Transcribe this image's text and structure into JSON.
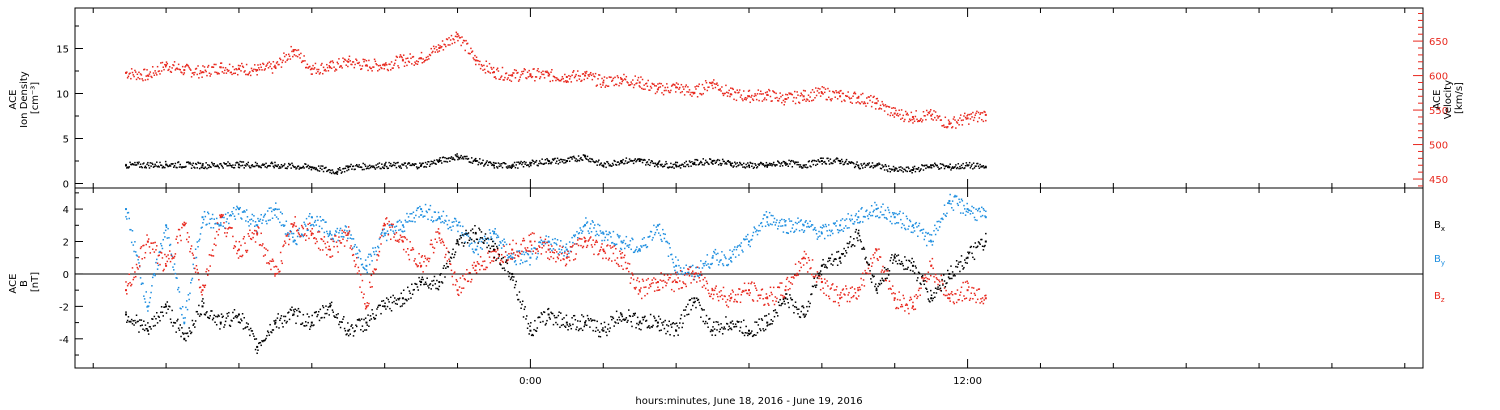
{
  "chart_data": [
    {
      "type": "scatter",
      "panel": "plasma",
      "ylabel_lines": [
        "ACE",
        "Ion Density",
        "[cm⁻³]"
      ],
      "y2label_lines": [
        "ACE",
        "Velocity",
        "[km/s]"
      ],
      "ylim": [
        -0.5,
        19.5
      ],
      "y_ticks": [
        0,
        5,
        10,
        15
      ],
      "y2lim": [
        437,
        698
      ],
      "y2_ticks": [
        450,
        500,
        550,
        600,
        650
      ],
      "y2_color": "#e8281e",
      "grid": false,
      "series": [
        {
          "key": "density",
          "color": "#000000",
          "axis": "left",
          "x": [
            -11.1,
            -10.0,
            -9.0,
            -8.0,
            -7.0,
            -6.0,
            -5.3,
            -5.0,
            -4.0,
            -3.0,
            -2.5,
            -2.0,
            -1.5,
            -1.0,
            -0.5,
            0.0,
            0.5,
            1.0,
            1.5,
            2.0,
            2.5,
            3.0,
            3.5,
            4.0,
            4.5,
            5.0,
            5.5,
            6.0,
            6.5,
            7.0,
            7.5,
            8.0,
            8.5,
            9.0,
            9.5,
            10.0,
            10.5,
            11.0,
            11.5,
            12.0,
            12.5
          ],
          "y": [
            2.0,
            2.1,
            2.0,
            2.1,
            2.0,
            1.8,
            1.3,
            1.8,
            2.0,
            2.0,
            2.5,
            3.0,
            2.5,
            2.0,
            2.0,
            2.2,
            2.5,
            2.5,
            3.0,
            2.0,
            2.5,
            2.5,
            2.2,
            2.0,
            2.3,
            2.5,
            2.2,
            2.0,
            2.0,
            2.3,
            2.0,
            2.5,
            2.5,
            2.0,
            2.0,
            1.5,
            1.5,
            2.0,
            1.8,
            2.0,
            1.8
          ]
        },
        {
          "key": "velocity",
          "color": "#e8281e",
          "axis": "right",
          "x": [
            -11.1,
            -10.5,
            -10.0,
            -9.5,
            -9.0,
            -8.5,
            -8.0,
            -7.5,
            -7.0,
            -6.5,
            -6.0,
            -5.5,
            -5.0,
            -4.5,
            -4.0,
            -3.5,
            -3.0,
            -2.5,
            -2.0,
            -1.5,
            -1.0,
            -0.5,
            0.0,
            0.5,
            1.0,
            1.5,
            2.0,
            2.5,
            3.0,
            3.5,
            4.0,
            4.5,
            5.0,
            5.5,
            6.0,
            6.5,
            7.0,
            7.5,
            8.0,
            8.5,
            9.0,
            9.5,
            10.0,
            10.5,
            11.0,
            11.5,
            12.0,
            12.5
          ],
          "y": [
            604,
            600,
            615,
            608,
            605,
            612,
            610,
            608,
            612,
            637,
            610,
            612,
            620,
            615,
            615,
            622,
            625,
            640,
            660,
            622,
            605,
            600,
            602,
            600,
            598,
            600,
            590,
            595,
            590,
            580,
            583,
            575,
            590,
            573,
            570,
            572,
            566,
            570,
            575,
            570,
            568,
            560,
            545,
            540,
            542,
            530,
            538,
            543
          ]
        }
      ]
    },
    {
      "type": "scatter",
      "panel": "magnetic_field",
      "ylabel_lines": [
        "ACE",
        "B",
        "[nT]"
      ],
      "ylim": [
        -5.8,
        5.3
      ],
      "y_ticks": [
        -4,
        -2,
        0,
        2,
        4
      ],
      "zero_line": true,
      "grid": false,
      "legend_position": "right",
      "series": [
        {
          "key": "bx",
          "name": "Bx",
          "color": "#000000",
          "x": [
            -11.1,
            -10.5,
            -10.0,
            -9.5,
            -9.0,
            -8.5,
            -8.0,
            -7.5,
            -7.0,
            -6.5,
            -6.0,
            -5.5,
            -5.0,
            -4.5,
            -4.0,
            -3.5,
            -3.0,
            -2.5,
            -2.0,
            -1.5,
            -1.0,
            -0.5,
            0.0,
            0.5,
            1.0,
            1.5,
            2.0,
            2.5,
            3.0,
            3.5,
            4.0,
            4.5,
            5.0,
            5.5,
            6.0,
            6.5,
            7.0,
            7.5,
            8.0,
            8.5,
            9.0,
            9.5,
            10.0,
            10.5,
            11.0,
            11.5,
            12.0,
            12.5
          ],
          "y": [
            -2.5,
            -3.5,
            -2.0,
            -4.0,
            -2.0,
            -3.0,
            -2.5,
            -4.5,
            -3.0,
            -2.5,
            -3.0,
            -2.0,
            -3.5,
            -3.0,
            -2.0,
            -1.5,
            -0.5,
            -0.5,
            2.0,
            2.5,
            1.5,
            0.0,
            -3.5,
            -2.5,
            -3.0,
            -3.0,
            -3.5,
            -2.5,
            -3.0,
            -3.0,
            -3.5,
            -1.5,
            -3.5,
            -3.0,
            -3.5,
            -3.0,
            -1.5,
            -2.5,
            0.5,
            1.0,
            2.5,
            -1.0,
            1.0,
            0.5,
            -1.5,
            0.0,
            1.0,
            2.0
          ]
        },
        {
          "key": "by",
          "name": "By",
          "color": "#1f8fe0",
          "x": [
            -11.1,
            -10.5,
            -10.0,
            -9.5,
            -9.0,
            -8.5,
            -8.0,
            -7.5,
            -7.0,
            -6.5,
            -6.0,
            -5.5,
            -5.0,
            -4.5,
            -4.0,
            -3.5,
            -3.0,
            -2.5,
            -2.0,
            -1.5,
            -1.0,
            -0.5,
            0.0,
            0.5,
            1.0,
            1.5,
            2.0,
            2.5,
            3.0,
            3.5,
            4.0,
            4.5,
            5.0,
            5.5,
            6.0,
            6.5,
            7.0,
            7.5,
            8.0,
            8.5,
            9.0,
            9.5,
            10.0,
            10.5,
            11.0,
            11.5,
            12.0,
            12.5
          ],
          "y": [
            4.0,
            -2.0,
            3.0,
            -3.0,
            3.5,
            3.0,
            4.0,
            3.0,
            4.0,
            2.0,
            3.5,
            2.5,
            2.5,
            0.5,
            2.5,
            3.0,
            4.0,
            3.5,
            3.0,
            1.5,
            2.5,
            1.0,
            1.0,
            2.0,
            1.5,
            3.0,
            2.5,
            2.0,
            1.5,
            3.0,
            0.5,
            0.0,
            1.0,
            1.0,
            2.0,
            3.5,
            3.0,
            3.0,
            2.5,
            3.0,
            3.5,
            4.0,
            3.5,
            3.0,
            2.0,
            4.5,
            4.0,
            3.5
          ]
        },
        {
          "key": "bz",
          "name": "Bz",
          "color": "#e8281e",
          "x": [
            -11.1,
            -10.5,
            -10.0,
            -9.5,
            -9.0,
            -8.5,
            -8.0,
            -7.5,
            -7.0,
            -6.5,
            -6.0,
            -5.5,
            -5.0,
            -4.5,
            -4.0,
            -3.5,
            -3.0,
            -2.5,
            -2.0,
            -1.5,
            -1.0,
            -0.5,
            0.0,
            0.5,
            1.0,
            1.5,
            2.0,
            2.5,
            3.0,
            3.5,
            4.0,
            4.5,
            5.0,
            5.5,
            6.0,
            6.5,
            7.0,
            7.5,
            8.0,
            8.5,
            9.0,
            9.5,
            10.0,
            10.5,
            11.0,
            11.5,
            12.0,
            12.5
          ],
          "y": [
            -1.0,
            2.0,
            0.5,
            3.0,
            -1.0,
            3.5,
            1.5,
            2.5,
            0.0,
            3.0,
            2.5,
            1.5,
            2.5,
            -2.0,
            3.0,
            2.0,
            0.5,
            2.5,
            -1.0,
            0.5,
            1.0,
            1.5,
            2.0,
            1.5,
            1.0,
            2.0,
            1.5,
            1.0,
            -1.0,
            -0.5,
            -0.5,
            0.0,
            -1.0,
            -1.5,
            -1.0,
            -1.5,
            -1.0,
            1.0,
            -0.5,
            -1.5,
            -1.0,
            1.5,
            -1.5,
            -2.0,
            0.5,
            -1.5,
            -1.0,
            -1.5
          ]
        }
      ]
    }
  ],
  "x_axis": {
    "xlim": [
      -12.5,
      24.5
    ],
    "tick_labels": [
      {
        "x": 0,
        "label": "0:00"
      },
      {
        "x": 12,
        "label": "12:00"
      }
    ],
    "minor_tick_step": 2,
    "xlabel": "hours:minutes, June 18, 2016 - June 19, 2016"
  },
  "legend": [
    {
      "base": "B",
      "sub": "x",
      "color": "#000000"
    },
    {
      "base": "B",
      "sub": "y",
      "color": "#1f8fe0"
    },
    {
      "base": "B",
      "sub": "z",
      "color": "#e8281e"
    }
  ]
}
